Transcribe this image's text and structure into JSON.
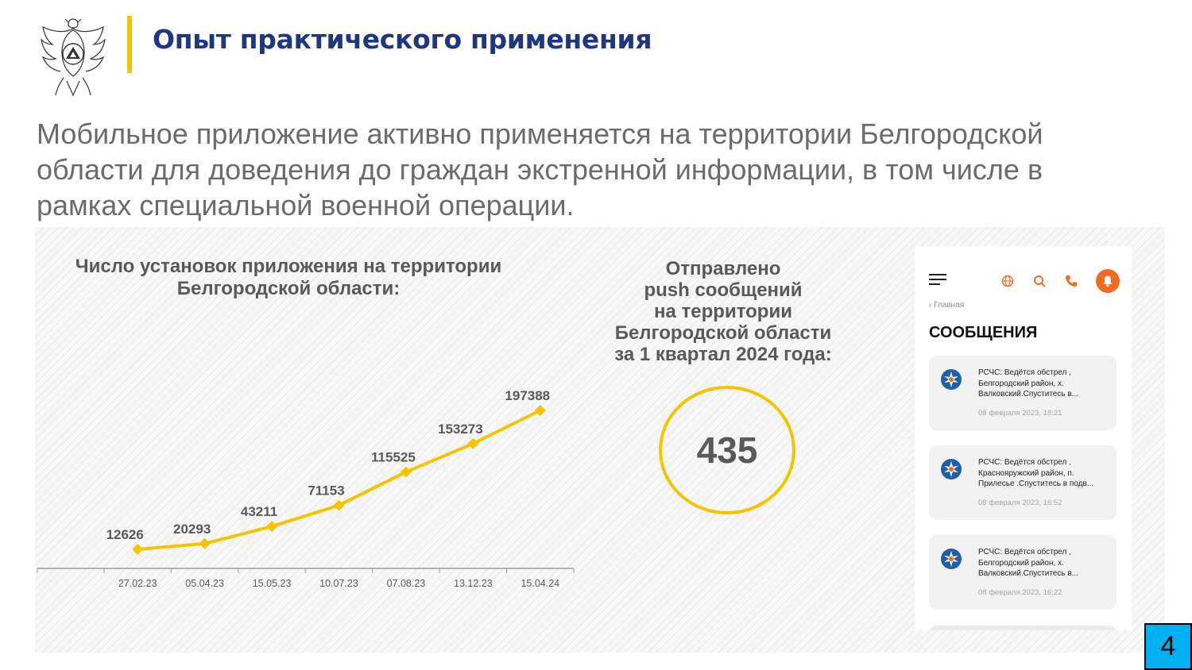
{
  "header": {
    "title": "Опыт практического применения"
  },
  "intro_text": "Мобильное приложение активно применяется на территории Белгородской области для доведения до граждан экстренной информации, в том числе в рамках специальной военной операции.",
  "chart": {
    "title_line1": "Число установок приложения на территории",
    "title_line2": "Белгородской области:"
  },
  "chart_data": {
    "type": "line",
    "title": "Число установок приложения на территории Белгородской области:",
    "categories": [
      "27.02.23",
      "05.04.23",
      "15.05.23",
      "10.07.23",
      "07.08.23",
      "13.12.23",
      "15.04.24"
    ],
    "series": [
      {
        "values": [
          12626,
          20293,
          43211,
          71153,
          115525,
          153273,
          197388
        ]
      }
    ],
    "xlabel": "",
    "ylabel": "",
    "ylim": [
      0,
      220000
    ],
    "grid": false,
    "marker": "diamond",
    "color": "#f5c400",
    "data_labels": true
  },
  "push": {
    "title_lines": [
      "Отправлено",
      "push сообщений",
      "на  территории",
      "Белгородской области",
      "за 1 квартал 2024 года:"
    ],
    "value": "435"
  },
  "phone": {
    "back_label": "‹ Главная",
    "heading": "СООБЩЕНИЯ",
    "messages": [
      {
        "lines": [
          "РСЧС: Ведётся обстрел ,",
          "Белгородский район, х.",
          "Валковский.Спуститесь в..."
        ],
        "date": "08 февраля 2023, 18:21"
      },
      {
        "lines": [
          "РСЧС: Ведётся обстрел ,",
          "Краснояружский район, п.",
          "Прилесье .Спуститесь в подв..."
        ],
        "date": "08 февраля 2023, 16:52"
      },
      {
        "lines": [
          "РСЧС: Ведётся обстрел ,",
          "Белгородский район, х.",
          "Валковский.Спуститесь в..."
        ],
        "date": "08 февраля 2023, 16:22"
      }
    ],
    "icons": [
      "menu-icon",
      "globe-icon",
      "search-icon",
      "phone-icon",
      "bell-icon"
    ]
  },
  "colors": {
    "title_blue": "#1f3680",
    "accent_yellow": "#f5c400",
    "bell_orange": "#f26b21",
    "page_number_bg": "#00b0f0"
  },
  "page_number": "4"
}
